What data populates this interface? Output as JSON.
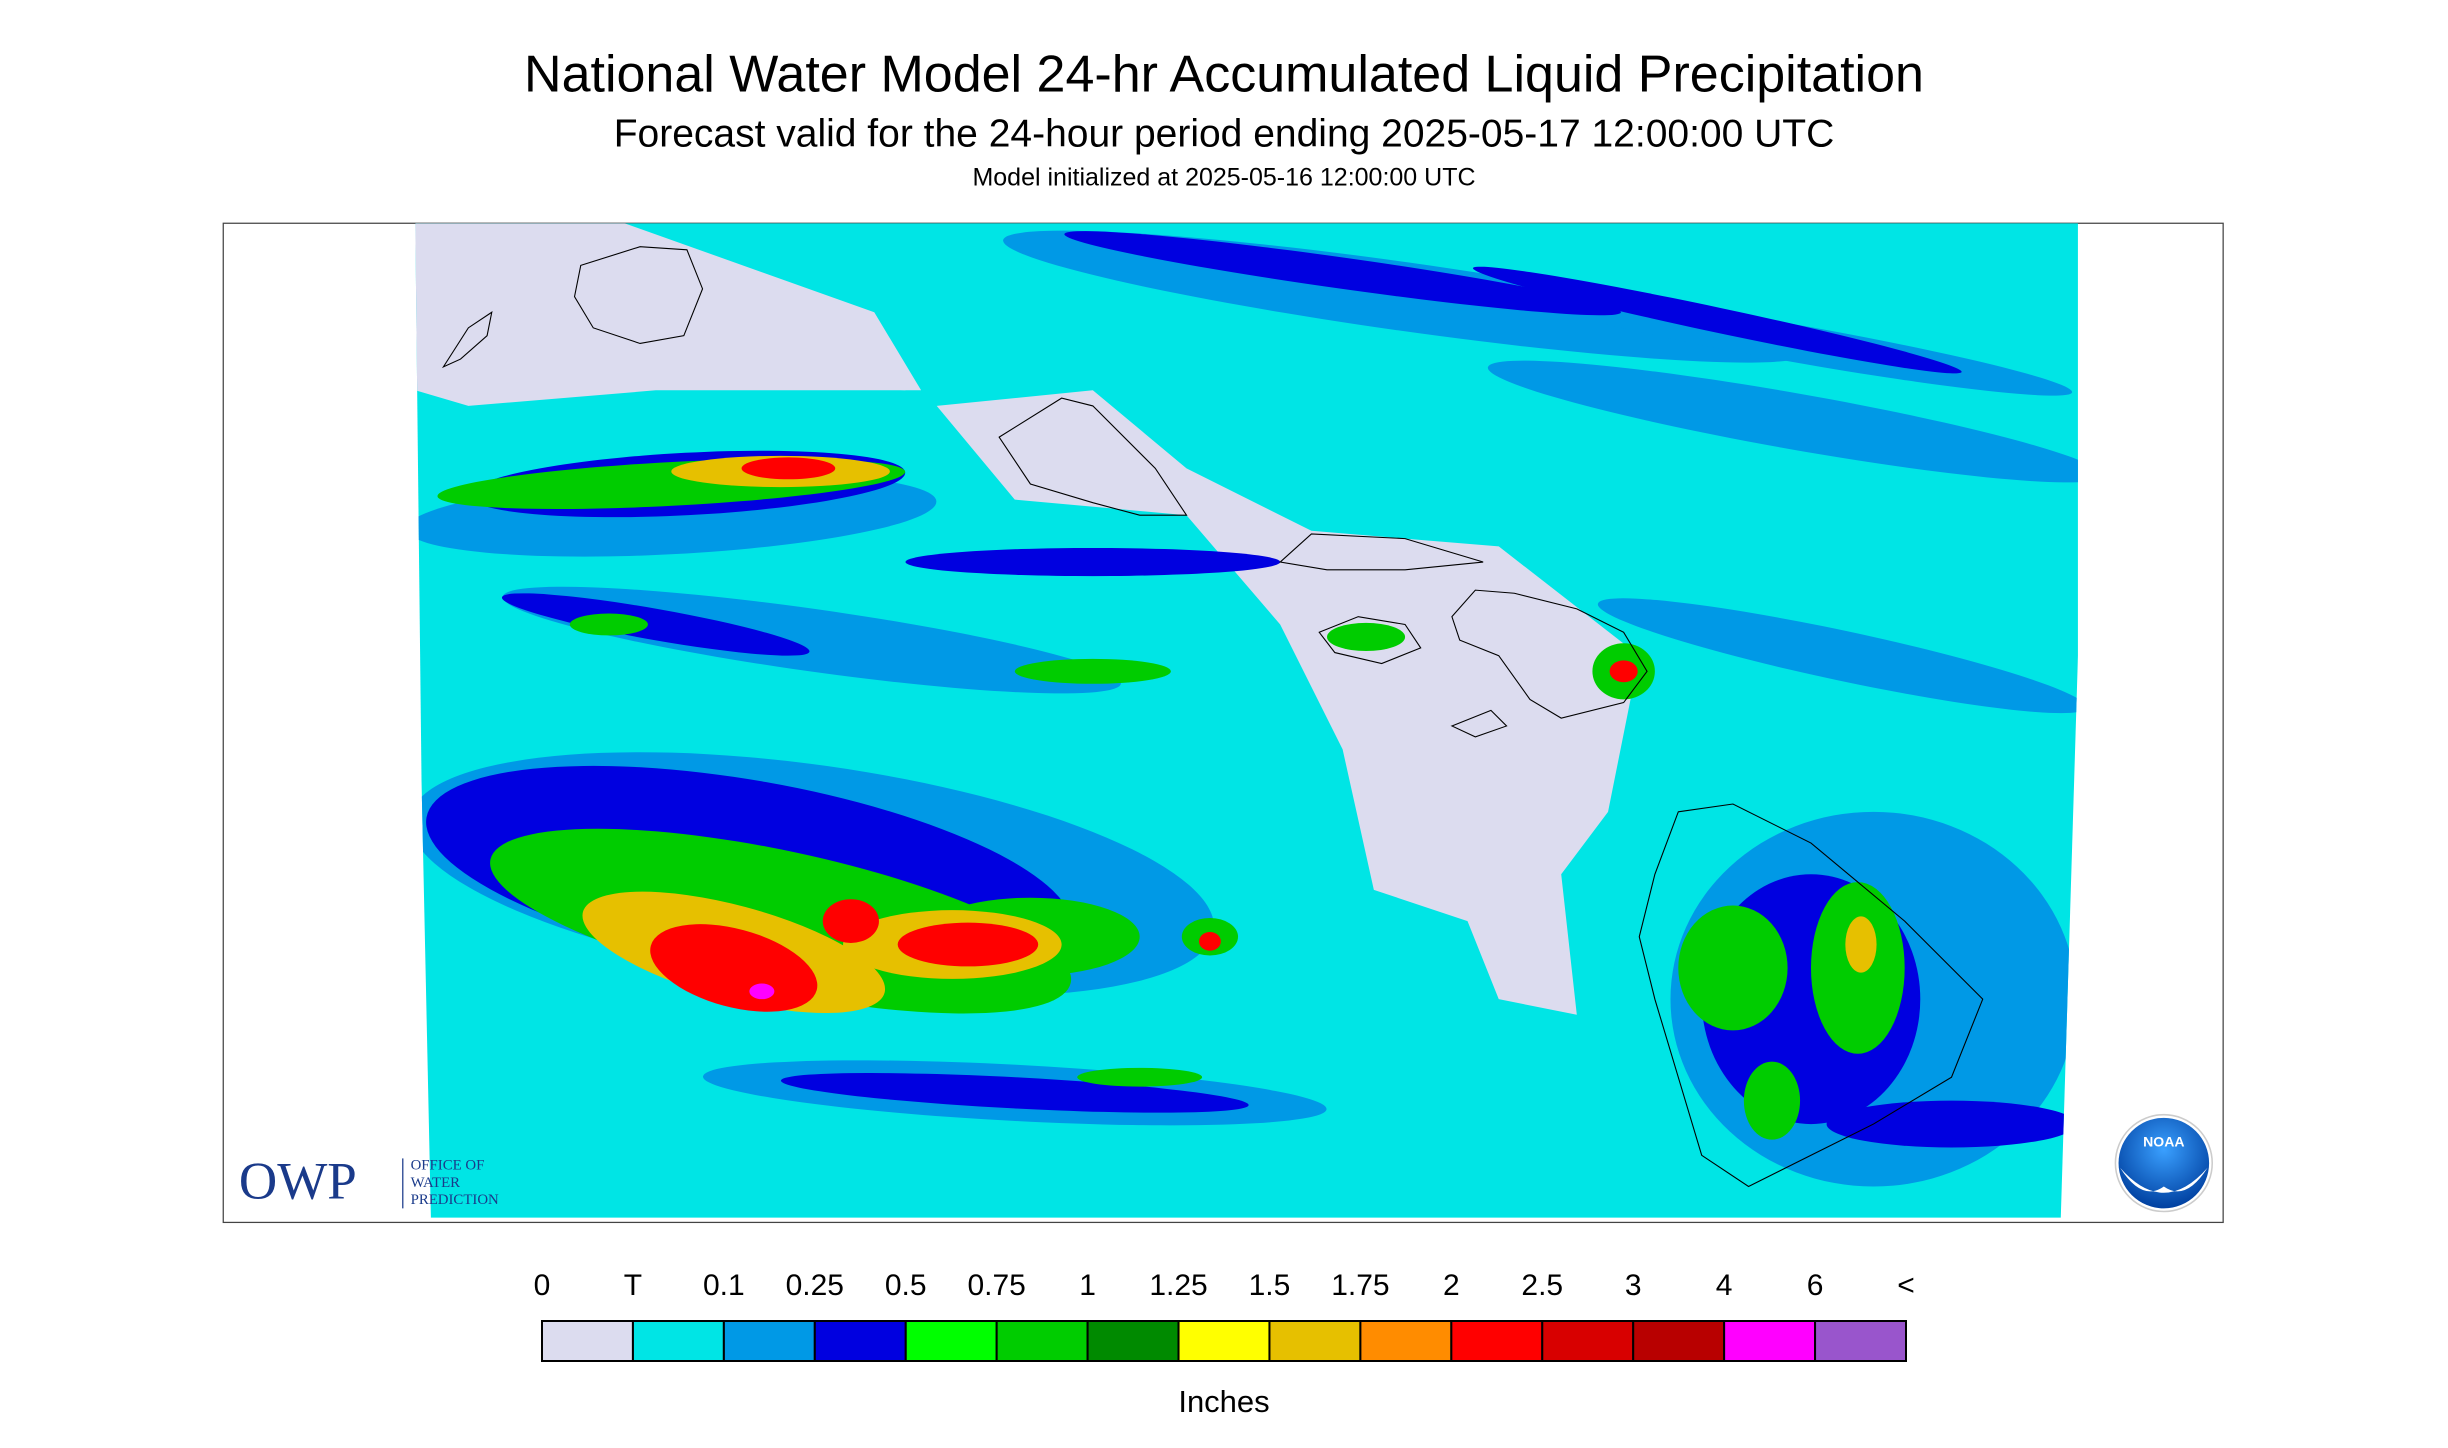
{
  "header": {
    "title": "National Water Model 24-hr Accumulated Liquid Precipitation",
    "subtitle": "Forecast valid for the 24-hour period ending 2025-05-17 12:00:00 UTC",
    "initialized": "Model initialized at 2025-05-16 12:00:00 UTC"
  },
  "legend": {
    "labels": [
      "0",
      "T",
      "0.1",
      "0.25",
      "0.5",
      "0.75",
      "1",
      "1.25",
      "1.5",
      "1.75",
      "2",
      "2.5",
      "3",
      "4",
      "6",
      "<"
    ],
    "colors": [
      "#dcdcef",
      "#00e5e5",
      "#0099e6",
      "#0000e0",
      "#00ff00",
      "#00cc00",
      "#008a00",
      "#ffff00",
      "#e6c000",
      "#ff8c00",
      "#ff0000",
      "#d80000",
      "#b80000",
      "#ff00ff",
      "#9955cc"
    ],
    "unit": "Inches"
  },
  "logos": {
    "owp": "OWP",
    "owp_lines": [
      "OFFICE OF",
      "WATER",
      "PREDICTION"
    ],
    "noaa": "NOAA"
  }
}
